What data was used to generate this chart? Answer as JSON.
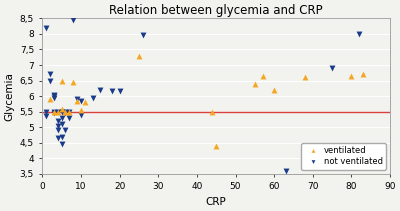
{
  "title": "Relation between glycemia and CRP",
  "xlabel": "CRP",
  "ylabel": "Glycemia",
  "hline_y": 5.5,
  "hline_color": "#d94040",
  "xlim": [
    0,
    90
  ],
  "ylim": [
    3.5,
    8.5
  ],
  "xticks": [
    0,
    10,
    20,
    30,
    40,
    50,
    60,
    70,
    80,
    90
  ],
  "yticks": [
    3.5,
    4.0,
    4.5,
    5.0,
    5.5,
    6.0,
    6.5,
    7.0,
    7.5,
    8.0,
    8.5
  ],
  "ytick_labels": [
    "3,5",
    "4",
    "4,5",
    "5",
    "5,5",
    "6",
    "6,5",
    "7",
    "7,5",
    "8",
    "8,5"
  ],
  "ventilated_color": "#f5a623",
  "not_ventilated_color": "#1a3a8a",
  "background_color": "#f2f2ee",
  "ventilated": [
    [
      2,
      5.9
    ],
    [
      3,
      5.5
    ],
    [
      4,
      5.5
    ],
    [
      5,
      5.6
    ],
    [
      5,
      6.5
    ],
    [
      6,
      5.5
    ],
    [
      7,
      5.5
    ],
    [
      8,
      6.45
    ],
    [
      9,
      5.85
    ],
    [
      10,
      5.55
    ],
    [
      11,
      5.8
    ],
    [
      25,
      7.3
    ],
    [
      44,
      5.5
    ],
    [
      45,
      4.4
    ],
    [
      55,
      6.4
    ],
    [
      57,
      6.65
    ],
    [
      60,
      6.2
    ],
    [
      68,
      6.6
    ],
    [
      80,
      6.65
    ],
    [
      83,
      6.7
    ]
  ],
  "not_ventilated": [
    [
      1,
      8.2
    ],
    [
      1,
      5.5
    ],
    [
      1,
      5.35
    ],
    [
      2,
      6.7
    ],
    [
      2,
      6.5
    ],
    [
      3,
      6.05
    ],
    [
      3,
      6.0
    ],
    [
      3,
      5.95
    ],
    [
      3,
      5.5
    ],
    [
      3,
      5.45
    ],
    [
      4,
      5.5
    ],
    [
      4,
      5.2
    ],
    [
      4,
      5.05
    ],
    [
      4,
      4.9
    ],
    [
      4,
      4.65
    ],
    [
      5,
      5.5
    ],
    [
      5,
      5.3
    ],
    [
      5,
      5.1
    ],
    [
      5,
      4.7
    ],
    [
      5,
      4.45
    ],
    [
      6,
      5.5
    ],
    [
      6,
      5.45
    ],
    [
      6,
      4.9
    ],
    [
      7,
      5.5
    ],
    [
      7,
      5.3
    ],
    [
      8,
      8.45
    ],
    [
      9,
      5.9
    ],
    [
      10,
      5.85
    ],
    [
      10,
      5.4
    ],
    [
      13,
      5.95
    ],
    [
      15,
      6.2
    ],
    [
      18,
      6.15
    ],
    [
      20,
      6.15
    ],
    [
      26,
      7.95
    ],
    [
      63,
      3.6
    ],
    [
      75,
      6.9
    ],
    [
      82,
      8.0
    ]
  ]
}
